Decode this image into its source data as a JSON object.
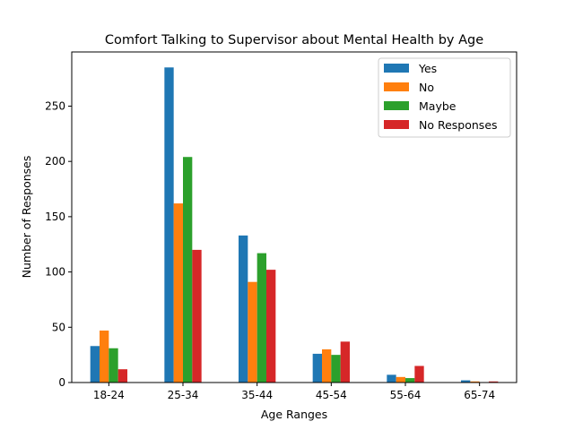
{
  "chart_data": {
    "type": "bar",
    "title": "Comfort Talking to Supervisor about Mental Health by Age",
    "xlabel": "Age Ranges",
    "ylabel": "Number of Responses",
    "categories": [
      "18-24",
      "25-34",
      "35-44",
      "45-54",
      "55-64",
      "65-74"
    ],
    "series": [
      {
        "name": "Yes",
        "color": "#1f77b4",
        "values": [
          33,
          285,
          133,
          26,
          7,
          2
        ]
      },
      {
        "name": "No",
        "color": "#ff7f0e",
        "values": [
          47,
          162,
          91,
          30,
          5,
          1
        ]
      },
      {
        "name": "Maybe",
        "color": "#2ca02c",
        "values": [
          31,
          204,
          117,
          25,
          4,
          0
        ]
      },
      {
        "name": "No Responses",
        "color": "#d62728",
        "values": [
          12,
          120,
          102,
          37,
          15,
          1
        ]
      }
    ],
    "ylim": [
      0,
      299
    ],
    "yticks": [
      0,
      50,
      100,
      150,
      200,
      250
    ],
    "grid": false,
    "legend_position": "top-right"
  }
}
